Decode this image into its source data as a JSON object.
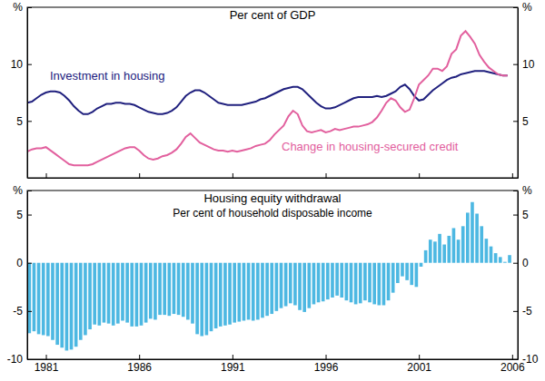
{
  "chart_data": [
    {
      "type": "line",
      "title": "Per cent of GDP",
      "x": [
        1980,
        1980.25,
        1980.5,
        1980.75,
        1981,
        1981.25,
        1981.5,
        1981.75,
        1982,
        1982.25,
        1982.5,
        1982.75,
        1983,
        1983.25,
        1983.5,
        1983.75,
        1984,
        1984.25,
        1984.5,
        1984.75,
        1985,
        1985.25,
        1985.5,
        1985.75,
        1986,
        1986.25,
        1986.5,
        1986.75,
        1987,
        1987.25,
        1987.5,
        1987.75,
        1988,
        1988.25,
        1988.5,
        1988.75,
        1989,
        1989.25,
        1989.5,
        1989.75,
        1990,
        1990.25,
        1990.5,
        1990.75,
        1991,
        1991.25,
        1991.5,
        1991.75,
        1992,
        1992.25,
        1992.5,
        1992.75,
        1993,
        1993.25,
        1993.5,
        1993.75,
        1994,
        1994.25,
        1994.5,
        1994.75,
        1995,
        1995.25,
        1995.5,
        1995.75,
        1996,
        1996.25,
        1996.5,
        1996.75,
        1997,
        1997.25,
        1997.5,
        1997.75,
        1998,
        1998.25,
        1998.5,
        1998.75,
        1999,
        1999.25,
        1999.5,
        1999.75,
        2000,
        2000.25,
        2000.5,
        2000.75,
        2001,
        2001.25,
        2001.5,
        2001.75,
        2002,
        2002.25,
        2002.5,
        2002.75,
        2003,
        2003.25,
        2003.5,
        2003.75,
        2004,
        2004.25,
        2004.5,
        2004.75,
        2005,
        2005.25,
        2005.5,
        2005.75
      ],
      "series": [
        {
          "name": "Investment in housing",
          "color": "#20207e",
          "values": [
            6.6,
            6.7,
            7.0,
            7.3,
            7.5,
            7.6,
            7.6,
            7.5,
            7.2,
            6.8,
            6.3,
            5.9,
            5.6,
            5.6,
            5.8,
            6.1,
            6.3,
            6.5,
            6.5,
            6.6,
            6.6,
            6.5,
            6.5,
            6.4,
            6.2,
            6.0,
            5.8,
            5.7,
            5.6,
            5.6,
            5.7,
            5.9,
            6.2,
            6.7,
            7.2,
            7.5,
            7.7,
            7.7,
            7.5,
            7.2,
            6.9,
            6.6,
            6.5,
            6.4,
            6.4,
            6.4,
            6.4,
            6.5,
            6.6,
            6.7,
            6.9,
            7.0,
            7.2,
            7.4,
            7.6,
            7.8,
            7.9,
            8.0,
            8.0,
            7.8,
            7.4,
            7.0,
            6.6,
            6.3,
            6.1,
            6.1,
            6.2,
            6.4,
            6.6,
            6.8,
            7.0,
            7.1,
            7.1,
            7.1,
            7.1,
            7.2,
            7.1,
            7.2,
            7.4,
            7.6,
            8.0,
            8.2,
            7.8,
            7.2,
            6.8,
            6.9,
            7.3,
            7.7,
            8.0,
            8.3,
            8.6,
            8.8,
            8.9,
            9.1,
            9.2,
            9.3,
            9.4,
            9.4,
            9.4,
            9.3,
            9.2,
            9.1,
            9.0,
            9.0
          ]
        },
        {
          "name": "Change in housing-secured credit",
          "color": "#e2609e",
          "values": [
            2.3,
            2.5,
            2.6,
            2.6,
            2.7,
            2.4,
            2.1,
            1.8,
            1.5,
            1.2,
            1.1,
            1.1,
            1.1,
            1.1,
            1.2,
            1.4,
            1.6,
            1.8,
            2.0,
            2.2,
            2.4,
            2.6,
            2.7,
            2.7,
            2.4,
            2.0,
            1.7,
            1.6,
            1.7,
            1.9,
            2.0,
            2.2,
            2.5,
            3.0,
            3.6,
            3.9,
            3.5,
            3.1,
            2.9,
            2.7,
            2.5,
            2.4,
            2.4,
            2.3,
            2.4,
            2.3,
            2.4,
            2.5,
            2.6,
            2.8,
            2.9,
            3.0,
            3.3,
            3.8,
            4.2,
            4.6,
            5.4,
            5.9,
            5.6,
            4.6,
            4.1,
            4.0,
            4.1,
            4.2,
            4.0,
            4.1,
            4.3,
            4.2,
            4.3,
            4.4,
            4.5,
            4.5,
            4.6,
            4.7,
            4.9,
            5.3,
            5.9,
            6.6,
            7.0,
            6.8,
            6.2,
            5.8,
            6.0,
            7.0,
            8.2,
            8.6,
            9.0,
            9.6,
            9.6,
            9.4,
            9.8,
            10.9,
            11.3,
            12.5,
            12.9,
            12.4,
            11.8,
            10.8,
            10.2,
            9.7,
            9.4,
            9.1,
            9.0,
            9.0
          ]
        }
      ],
      "xlim": [
        1980,
        2006.3
      ],
      "xticks": [
        1981,
        1986,
        1991,
        1996,
        2001,
        2006
      ],
      "ylim": [
        0,
        15
      ],
      "yticks": [
        5,
        10,
        {
          "value": 15,
          "label": "%"
        }
      ],
      "tick_labels": "y"
    },
    {
      "type": "bar",
      "title": "Housing equity withdrawal",
      "subtitle": "Per cent of household disposable income",
      "x": [
        1980,
        1980.25,
        1980.5,
        1980.75,
        1981,
        1981.25,
        1981.5,
        1981.75,
        1982,
        1982.25,
        1982.5,
        1982.75,
        1983,
        1983.25,
        1983.5,
        1983.75,
        1984,
        1984.25,
        1984.5,
        1984.75,
        1985,
        1985.25,
        1985.5,
        1985.75,
        1986,
        1986.25,
        1986.5,
        1986.75,
        1987,
        1987.25,
        1987.5,
        1987.75,
        1988,
        1988.25,
        1988.5,
        1988.75,
        1989,
        1989.25,
        1989.5,
        1989.75,
        1990,
        1990.25,
        1990.5,
        1990.75,
        1991,
        1991.25,
        1991.5,
        1991.75,
        1992,
        1992.25,
        1992.5,
        1992.75,
        1993,
        1993.25,
        1993.5,
        1993.75,
        1994,
        1994.25,
        1994.5,
        1994.75,
        1995,
        1995.25,
        1995.5,
        1995.75,
        1996,
        1996.25,
        1996.5,
        1996.75,
        1997,
        1997.25,
        1997.5,
        1997.75,
        1998,
        1998.25,
        1998.5,
        1998.75,
        1999,
        1999.25,
        1999.5,
        1999.75,
        2000,
        2000.25,
        2000.5,
        2000.75,
        2001,
        2001.25,
        2001.5,
        2001.75,
        2002,
        2002.25,
        2002.5,
        2002.75,
        2003,
        2003.25,
        2003.5,
        2003.75,
        2004,
        2004.25,
        2004.5,
        2004.75,
        2005,
        2005.25,
        2005.5,
        2005.75
      ],
      "values": [
        -7.3,
        -7.1,
        -7.4,
        -7.5,
        -7.6,
        -8.0,
        -8.5,
        -8.8,
        -9.1,
        -9.0,
        -8.7,
        -8.0,
        -7.5,
        -6.9,
        -6.4,
        -6.5,
        -6.2,
        -6.3,
        -6.5,
        -6.3,
        -6.0,
        -6.2,
        -6.6,
        -6.6,
        -6.5,
        -6.2,
        -5.8,
        -5.9,
        -5.4,
        -5.4,
        -5.5,
        -5.3,
        -5.4,
        -5.6,
        -5.9,
        -6.3,
        -7.4,
        -7.6,
        -7.5,
        -7.1,
        -6.8,
        -6.6,
        -6.5,
        -6.4,
        -6.2,
        -6.1,
        -6.0,
        -5.9,
        -6.0,
        -5.9,
        -5.7,
        -5.5,
        -5.3,
        -5.0,
        -4.7,
        -4.5,
        -4.2,
        -4.4,
        -4.9,
        -5.1,
        -4.7,
        -4.3,
        -4.1,
        -4.0,
        -3.8,
        -3.6,
        -3.4,
        -3.6,
        -3.9,
        -4.1,
        -4.3,
        -4.2,
        -3.9,
        -4.1,
        -4.3,
        -4.4,
        -4.4,
        -3.9,
        -3.1,
        -2.1,
        -1.4,
        -1.8,
        -2.3,
        -2.5,
        -0.4,
        1.3,
        2.4,
        2.2,
        3.0,
        1.9,
        2.8,
        3.6,
        2.4,
        3.8,
        5.2,
        6.3,
        5.1,
        3.8,
        2.5,
        1.7,
        1.0,
        0.6,
        0.1,
        0.8
      ],
      "color": "#4db8e2",
      "xlim": [
        1980,
        2006.3
      ],
      "xticks": [
        1981,
        1986,
        1991,
        1996,
        2001,
        2006
      ],
      "ylim": [
        -10,
        7.5
      ],
      "yticks": [
        -10,
        -5,
        0,
        5,
        {
          "value": 7.5,
          "label": "%"
        }
      ]
    }
  ]
}
